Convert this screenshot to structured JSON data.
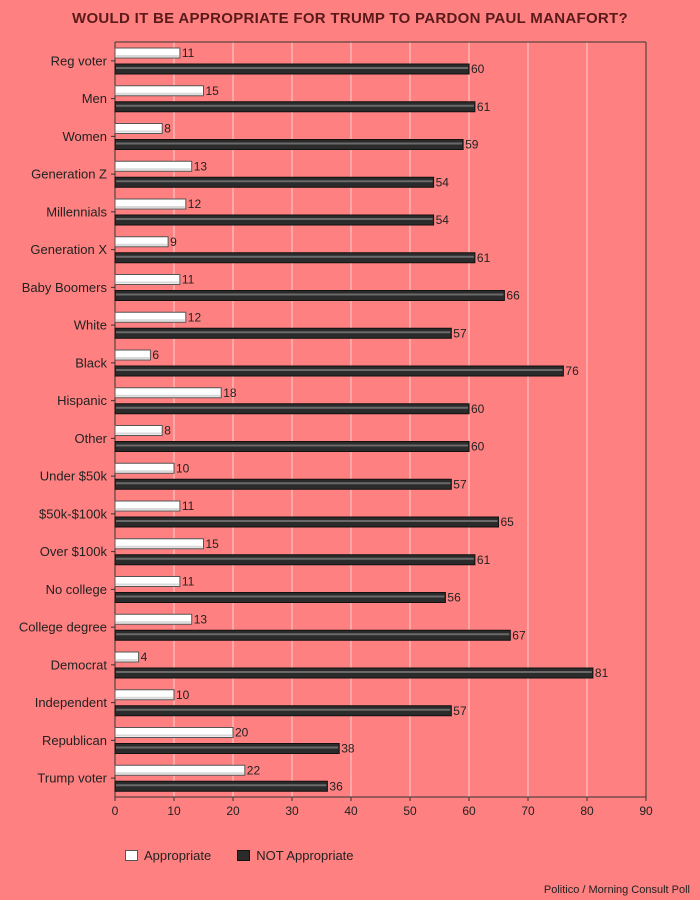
{
  "chart_data": {
    "type": "bar",
    "orientation": "horizontal",
    "title": "WOULD IT BE APPROPRIATE FOR TRUMP TO PARDON PAUL MANAFORT?",
    "categories": [
      "Reg voter",
      "Men",
      "Women",
      "Generation Z",
      "Millennials",
      "Generation X",
      "Baby Boomers",
      "White",
      "Black",
      "Hispanic",
      "Other",
      "Under $50k",
      "$50k-$100k",
      "Over $100k",
      "No college",
      "College degree",
      "Democrat",
      "Independent",
      "Republican",
      "Trump voter"
    ],
    "series": [
      {
        "name": "Appropriate",
        "color": "#ffffff",
        "values": [
          11,
          15,
          8,
          13,
          12,
          9,
          11,
          12,
          6,
          18,
          8,
          10,
          11,
          15,
          11,
          13,
          4,
          10,
          20,
          22
        ]
      },
      {
        "name": "NOT Appropriate",
        "color": "#2b2b2b",
        "values": [
          60,
          61,
          59,
          54,
          54,
          61,
          66,
          57,
          76,
          60,
          60,
          57,
          65,
          61,
          56,
          67,
          81,
          57,
          38,
          36
        ]
      }
    ],
    "xlim": [
      0,
      90
    ],
    "xticks": [
      0,
      10,
      20,
      30,
      40,
      50,
      60,
      70,
      80,
      90
    ],
    "grid": true,
    "legend_position": "bottom-left",
    "source": "Politico / Morning Consult Poll"
  }
}
